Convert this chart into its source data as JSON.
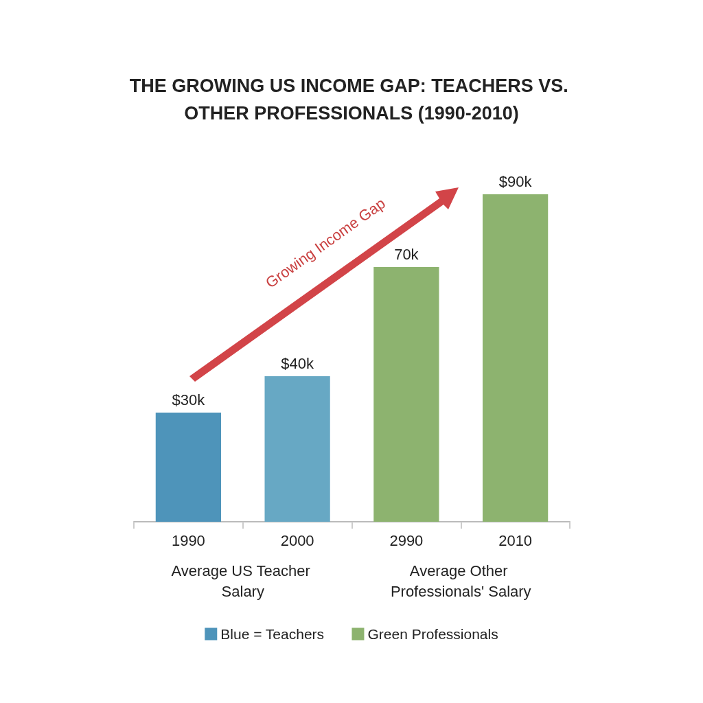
{
  "chart_data": {
    "type": "bar",
    "title": "THE GROWING US INCOME GAP: TEACHERS VS. OTHER PROFESSIONALS (1990-2010)",
    "categories": [
      "1990",
      "2000",
      "2990",
      "2010"
    ],
    "stacked": true,
    "series": [
      {
        "name": "Blue = Teachers",
        "color": "#4e94ba",
        "colors": [
          "#4e94ba",
          "#67a8c4",
          null,
          null
        ],
        "values": [
          30,
          40,
          null,
          null
        ],
        "value_labels": [
          "$30k",
          "$40k",
          null,
          null
        ]
      },
      {
        "name": "Green Professionals",
        "color": "#8db36f",
        "colors": [
          null,
          null,
          "#8db36f",
          "#8db36f"
        ],
        "values": [
          null,
          null,
          70,
          90
        ],
        "value_labels": [
          null,
          null,
          "70k",
          "$90k"
        ]
      }
    ],
    "annotations": [
      "Average US Teacher Salary",
      "Average Other Professionals' Salary",
      "Growing Income Gap"
    ],
    "legend": "bottom",
    "grid": false
  }
}
